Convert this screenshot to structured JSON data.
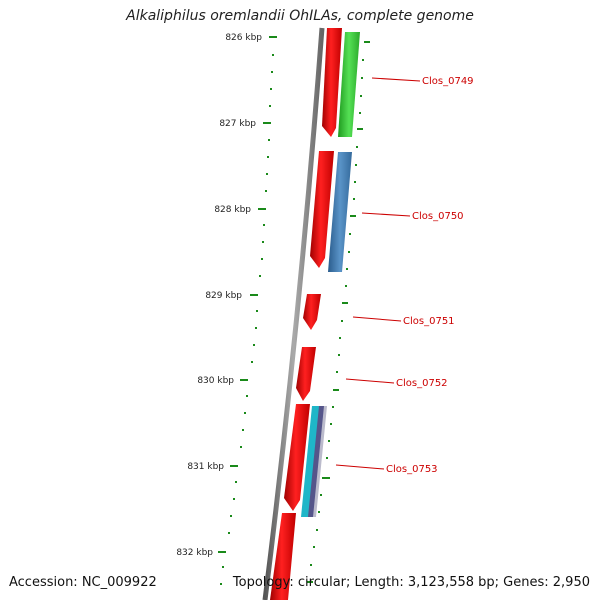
{
  "title": "Alkaliphilus oremlandii OhILAs, complete genome",
  "footer": {
    "accession": "Accession: NC_009922",
    "topology": "Topology: circular; Length: 3,123,558 bp; Genes: 2,950"
  },
  "kbp_labels": [
    "826 kbp",
    "827 kbp",
    "828 kbp",
    "829 kbp",
    "830 kbp",
    "831 kbp",
    "832 kbp"
  ],
  "gene_labels": [
    "Clos_0749",
    "Clos_0750",
    "Clos_0751",
    "Clos_0752",
    "Clos_0753"
  ],
  "colors": {
    "backbone": "#777777",
    "forward_red": "#e00000",
    "tick_green": "#1a8a1a",
    "label_red": "#cc0000",
    "green_feature": "#33cc33",
    "blue_feature": "#3a78b0",
    "cyan_feature": "#1fb6c8",
    "purple_feature": "#55558a"
  }
}
